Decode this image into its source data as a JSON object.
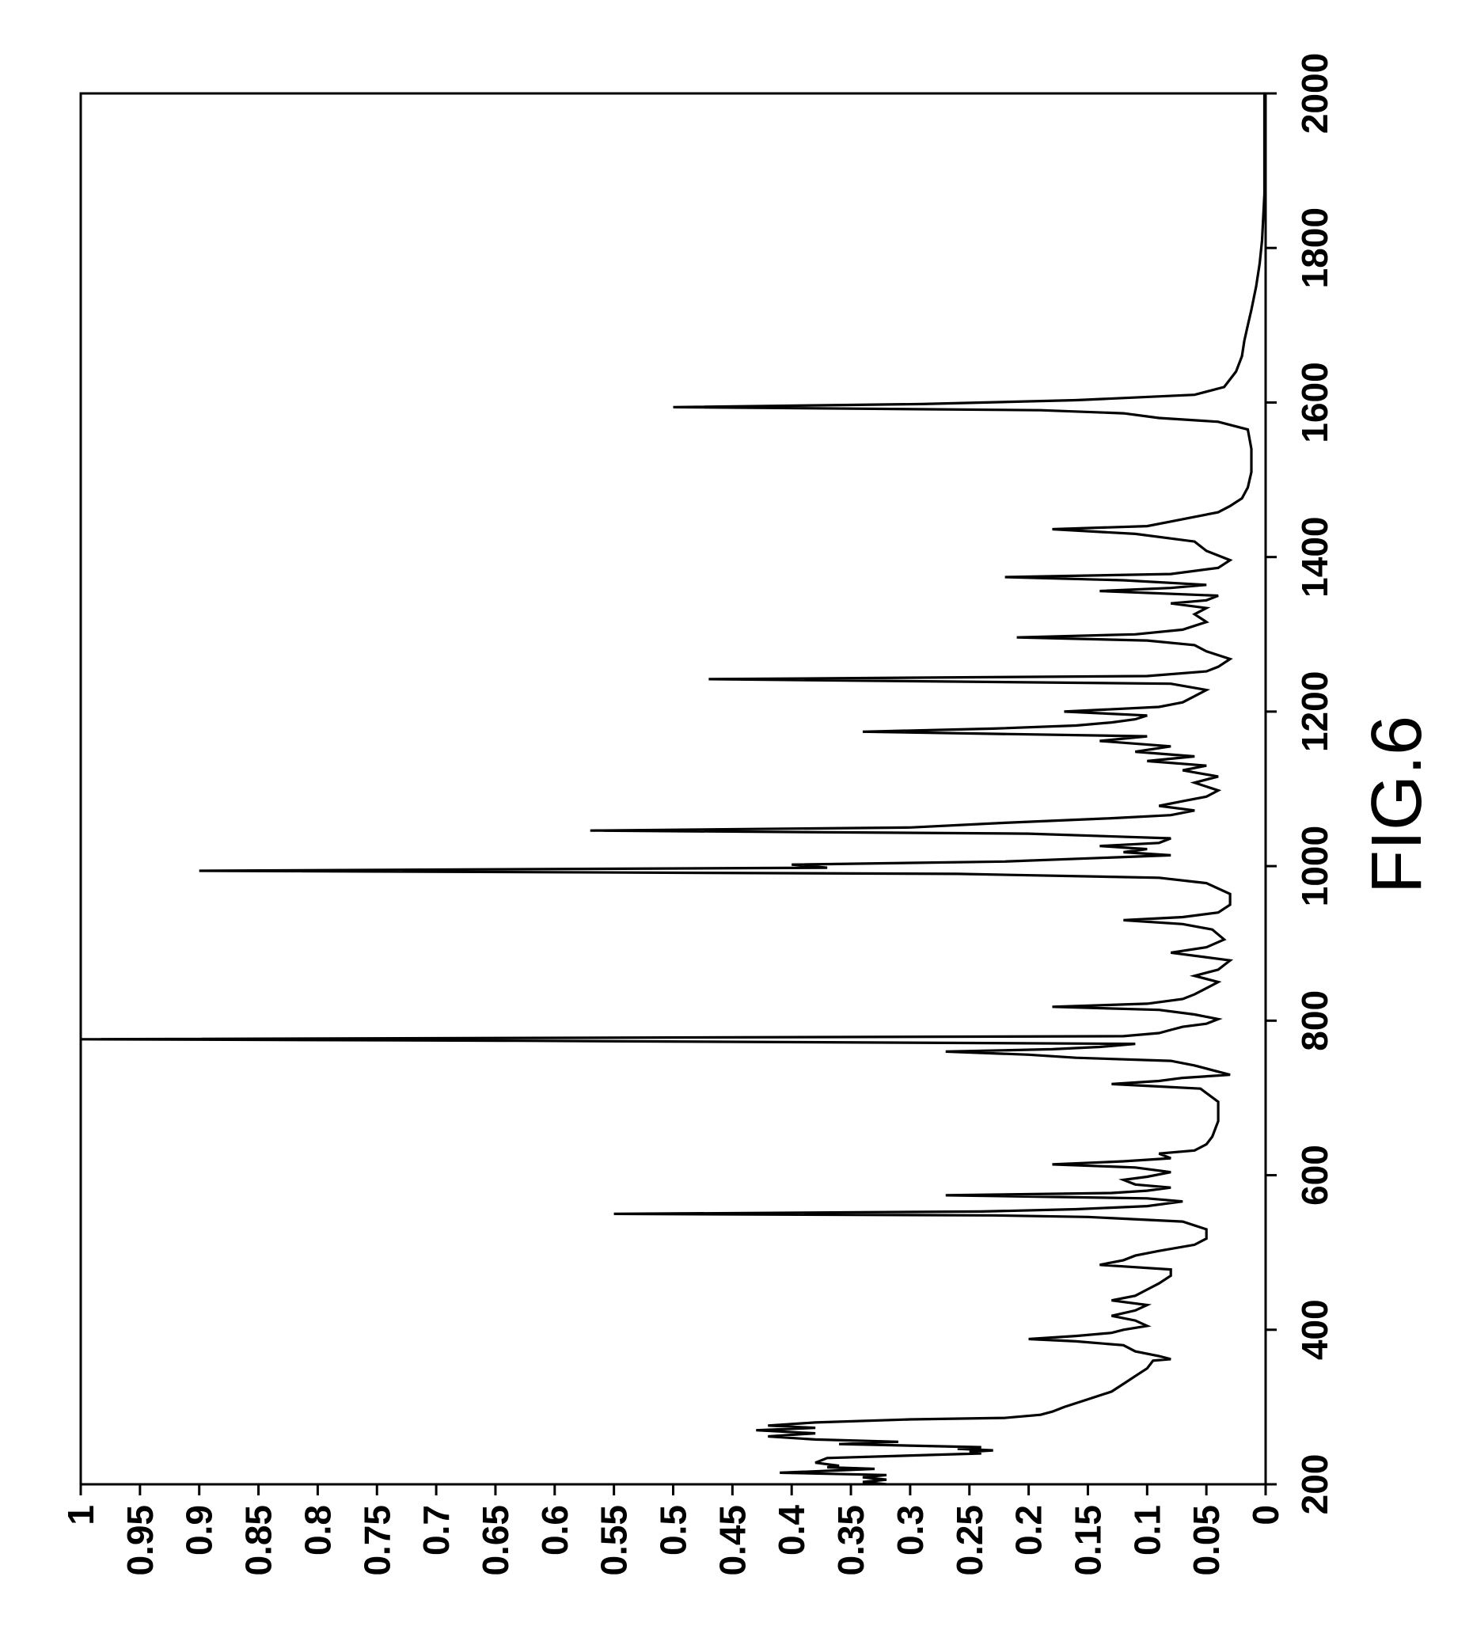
{
  "figure_label": "FIG.6",
  "chart_data": {
    "type": "line",
    "orientation": "rotated-90-clockwise",
    "title": "",
    "xlabel": "",
    "ylabel": "",
    "xlim": [
      200,
      2000
    ],
    "ylim": [
      0,
      1
    ],
    "grid": false,
    "x_ticks": [
      "200",
      "400",
      "600",
      "800",
      "1000",
      "1200",
      "1400",
      "1600",
      "1800",
      "2000"
    ],
    "x_tick_values": [
      200,
      400,
      600,
      800,
      1000,
      1200,
      1400,
      1600,
      1800,
      2000
    ],
    "y_ticks": [
      "0",
      "0.05",
      "0.1",
      "0.15",
      "0.2",
      "0.25",
      "0.3",
      "0.35",
      "0.4",
      "0.45",
      "0.5",
      "0.55",
      "0.6",
      "0.65",
      "0.7",
      "0.75",
      "0.8",
      "0.85",
      "0.9",
      "0.95",
      "1"
    ],
    "y_tick_values": [
      0,
      0.05,
      0.1,
      0.15,
      0.2,
      0.25,
      0.3,
      0.35,
      0.4,
      0.45,
      0.5,
      0.55,
      0.6,
      0.65,
      0.7,
      0.75,
      0.8,
      0.85,
      0.9,
      0.95,
      1
    ],
    "series": [
      {
        "points": [
          [
            200,
            0.32
          ],
          [
            203,
            0.34
          ],
          [
            206,
            0.32
          ],
          [
            209,
            0.34
          ],
          [
            212,
            0.32
          ],
          [
            215,
            0.41
          ],
          [
            218,
            0.36
          ],
          [
            220,
            0.33
          ],
          [
            222,
            0.37
          ],
          [
            224,
            0.36
          ],
          [
            228,
            0.38
          ],
          [
            234,
            0.37
          ],
          [
            240,
            0.24
          ],
          [
            242,
            0.25
          ],
          [
            244,
            0.23
          ],
          [
            246,
            0.26
          ],
          [
            248,
            0.24
          ],
          [
            252,
            0.36
          ],
          [
            255,
            0.31
          ],
          [
            258,
            0.38
          ],
          [
            262,
            0.42
          ],
          [
            266,
            0.38
          ],
          [
            270,
            0.43
          ],
          [
            273,
            0.38
          ],
          [
            276,
            0.42
          ],
          [
            280,
            0.38
          ],
          [
            284,
            0.3
          ],
          [
            286,
            0.22
          ],
          [
            290,
            0.19
          ],
          [
            294,
            0.18
          ],
          [
            300,
            0.17
          ],
          [
            310,
            0.15
          ],
          [
            320,
            0.13
          ],
          [
            330,
            0.12
          ],
          [
            340,
            0.11
          ],
          [
            350,
            0.1
          ],
          [
            360,
            0.095
          ],
          [
            362,
            0.08
          ],
          [
            366,
            0.09
          ],
          [
            372,
            0.11
          ],
          [
            380,
            0.12
          ],
          [
            385,
            0.16
          ],
          [
            388,
            0.2
          ],
          [
            392,
            0.16
          ],
          [
            396,
            0.13
          ],
          [
            400,
            0.12
          ],
          [
            405,
            0.1
          ],
          [
            412,
            0.11
          ],
          [
            418,
            0.13
          ],
          [
            425,
            0.11
          ],
          [
            432,
            0.1
          ],
          [
            438,
            0.13
          ],
          [
            444,
            0.11
          ],
          [
            452,
            0.1
          ],
          [
            460,
            0.09
          ],
          [
            470,
            0.08
          ],
          [
            478,
            0.08
          ],
          [
            484,
            0.14
          ],
          [
            490,
            0.12
          ],
          [
            496,
            0.11
          ],
          [
            502,
            0.09
          ],
          [
            510,
            0.06
          ],
          [
            518,
            0.05
          ],
          [
            530,
            0.05
          ],
          [
            540,
            0.07
          ],
          [
            546,
            0.15
          ],
          [
            548,
            0.23
          ],
          [
            550,
            0.55
          ],
          [
            553,
            0.24
          ],
          [
            556,
            0.16
          ],
          [
            560,
            0.1
          ],
          [
            566,
            0.07
          ],
          [
            570,
            0.1
          ],
          [
            574,
            0.27
          ],
          [
            577,
            0.13
          ],
          [
            580,
            0.1
          ],
          [
            584,
            0.08
          ],
          [
            588,
            0.11
          ],
          [
            594,
            0.12
          ],
          [
            598,
            0.1
          ],
          [
            604,
            0.08
          ],
          [
            610,
            0.11
          ],
          [
            614,
            0.18
          ],
          [
            618,
            0.12
          ],
          [
            622,
            0.08
          ],
          [
            628,
            0.09
          ],
          [
            632,
            0.06
          ],
          [
            640,
            0.05
          ],
          [
            650,
            0.045
          ],
          [
            670,
            0.04
          ],
          [
            695,
            0.04
          ],
          [
            712,
            0.055
          ],
          [
            718,
            0.13
          ],
          [
            722,
            0.09
          ],
          [
            726,
            0.07
          ],
          [
            730,
            0.03
          ],
          [
            736,
            0.045
          ],
          [
            742,
            0.06
          ],
          [
            748,
            0.08
          ],
          [
            752,
            0.16
          ],
          [
            756,
            0.2
          ],
          [
            760,
            0.27
          ],
          [
            763,
            0.18
          ],
          [
            766,
            0.14
          ],
          [
            770,
            0.11
          ],
          [
            774,
            0.63
          ],
          [
            776,
            1.0
          ],
          [
            780,
            0.12
          ],
          [
            784,
            0.09
          ],
          [
            788,
            0.08
          ],
          [
            792,
            0.07
          ],
          [
            796,
            0.05
          ],
          [
            802,
            0.04
          ],
          [
            808,
            0.06
          ],
          [
            814,
            0.09
          ],
          [
            818,
            0.18
          ],
          [
            822,
            0.1
          ],
          [
            828,
            0.07
          ],
          [
            834,
            0.06
          ],
          [
            842,
            0.05
          ],
          [
            850,
            0.04
          ],
          [
            858,
            0.06
          ],
          [
            866,
            0.04
          ],
          [
            878,
            0.03
          ],
          [
            888,
            0.08
          ],
          [
            895,
            0.05
          ],
          [
            905,
            0.035
          ],
          [
            918,
            0.045
          ],
          [
            925,
            0.07
          ],
          [
            930,
            0.12
          ],
          [
            934,
            0.07
          ],
          [
            940,
            0.04
          ],
          [
            950,
            0.03
          ],
          [
            964,
            0.03
          ],
          [
            978,
            0.05
          ],
          [
            985,
            0.09
          ],
          [
            990,
            0.26
          ],
          [
            994,
            0.9
          ],
          [
            998,
            0.37
          ],
          [
            1002,
            0.4
          ],
          [
            1006,
            0.22
          ],
          [
            1010,
            0.15
          ],
          [
            1014,
            0.08
          ],
          [
            1018,
            0.12
          ],
          [
            1022,
            0.1
          ],
          [
            1026,
            0.14
          ],
          [
            1030,
            0.09
          ],
          [
            1036,
            0.08
          ],
          [
            1042,
            0.2
          ],
          [
            1046,
            0.57
          ],
          [
            1050,
            0.3
          ],
          [
            1056,
            0.22
          ],
          [
            1062,
            0.13
          ],
          [
            1066,
            0.08
          ],
          [
            1072,
            0.06
          ],
          [
            1078,
            0.09
          ],
          [
            1084,
            0.07
          ],
          [
            1090,
            0.05
          ],
          [
            1098,
            0.04
          ],
          [
            1108,
            0.06
          ],
          [
            1116,
            0.04
          ],
          [
            1124,
            0.07
          ],
          [
            1130,
            0.05
          ],
          [
            1136,
            0.1
          ],
          [
            1142,
            0.06
          ],
          [
            1148,
            0.11
          ],
          [
            1155,
            0.08
          ],
          [
            1162,
            0.14
          ],
          [
            1168,
            0.1
          ],
          [
            1174,
            0.34
          ],
          [
            1178,
            0.23
          ],
          [
            1182,
            0.16
          ],
          [
            1186,
            0.13
          ],
          [
            1190,
            0.11
          ],
          [
            1195,
            0.1
          ],
          [
            1200,
            0.17
          ],
          [
            1206,
            0.09
          ],
          [
            1212,
            0.07
          ],
          [
            1220,
            0.06
          ],
          [
            1228,
            0.05
          ],
          [
            1236,
            0.08
          ],
          [
            1242,
            0.47
          ],
          [
            1246,
            0.1
          ],
          [
            1252,
            0.05
          ],
          [
            1258,
            0.04
          ],
          [
            1268,
            0.03
          ],
          [
            1278,
            0.05
          ],
          [
            1286,
            0.06
          ],
          [
            1292,
            0.1
          ],
          [
            1296,
            0.21
          ],
          [
            1300,
            0.11
          ],
          [
            1306,
            0.07
          ],
          [
            1316,
            0.05
          ],
          [
            1326,
            0.06
          ],
          [
            1334,
            0.05
          ],
          [
            1340,
            0.08
          ],
          [
            1344,
            0.05
          ],
          [
            1350,
            0.04
          ],
          [
            1356,
            0.14
          ],
          [
            1360,
            0.08
          ],
          [
            1364,
            0.05
          ],
          [
            1370,
            0.12
          ],
          [
            1374,
            0.22
          ],
          [
            1378,
            0.08
          ],
          [
            1386,
            0.04
          ],
          [
            1396,
            0.03
          ],
          [
            1408,
            0.05
          ],
          [
            1420,
            0.06
          ],
          [
            1430,
            0.11
          ],
          [
            1436,
            0.18
          ],
          [
            1440,
            0.1
          ],
          [
            1446,
            0.08
          ],
          [
            1452,
            0.06
          ],
          [
            1458,
            0.04
          ],
          [
            1466,
            0.03
          ],
          [
            1476,
            0.02
          ],
          [
            1490,
            0.015
          ],
          [
            1510,
            0.012
          ],
          [
            1540,
            0.012
          ],
          [
            1565,
            0.015
          ],
          [
            1575,
            0.04
          ],
          [
            1580,
            0.09
          ],
          [
            1586,
            0.12
          ],
          [
            1590,
            0.19
          ],
          [
            1594,
            0.5
          ],
          [
            1598,
            0.29
          ],
          [
            1603,
            0.16
          ],
          [
            1610,
            0.06
          ],
          [
            1620,
            0.035
          ],
          [
            1640,
            0.025
          ],
          [
            1660,
            0.02
          ],
          [
            1680,
            0.018
          ],
          [
            1700,
            0.015
          ],
          [
            1720,
            0.012
          ],
          [
            1750,
            0.008
          ],
          [
            1780,
            0.005
          ],
          [
            1810,
            0.003
          ],
          [
            1840,
            0.002
          ],
          [
            1870,
            0.001
          ],
          [
            1900,
            0.001
          ],
          [
            1950,
            0.001
          ],
          [
            2000,
            0.001
          ]
        ]
      }
    ]
  }
}
